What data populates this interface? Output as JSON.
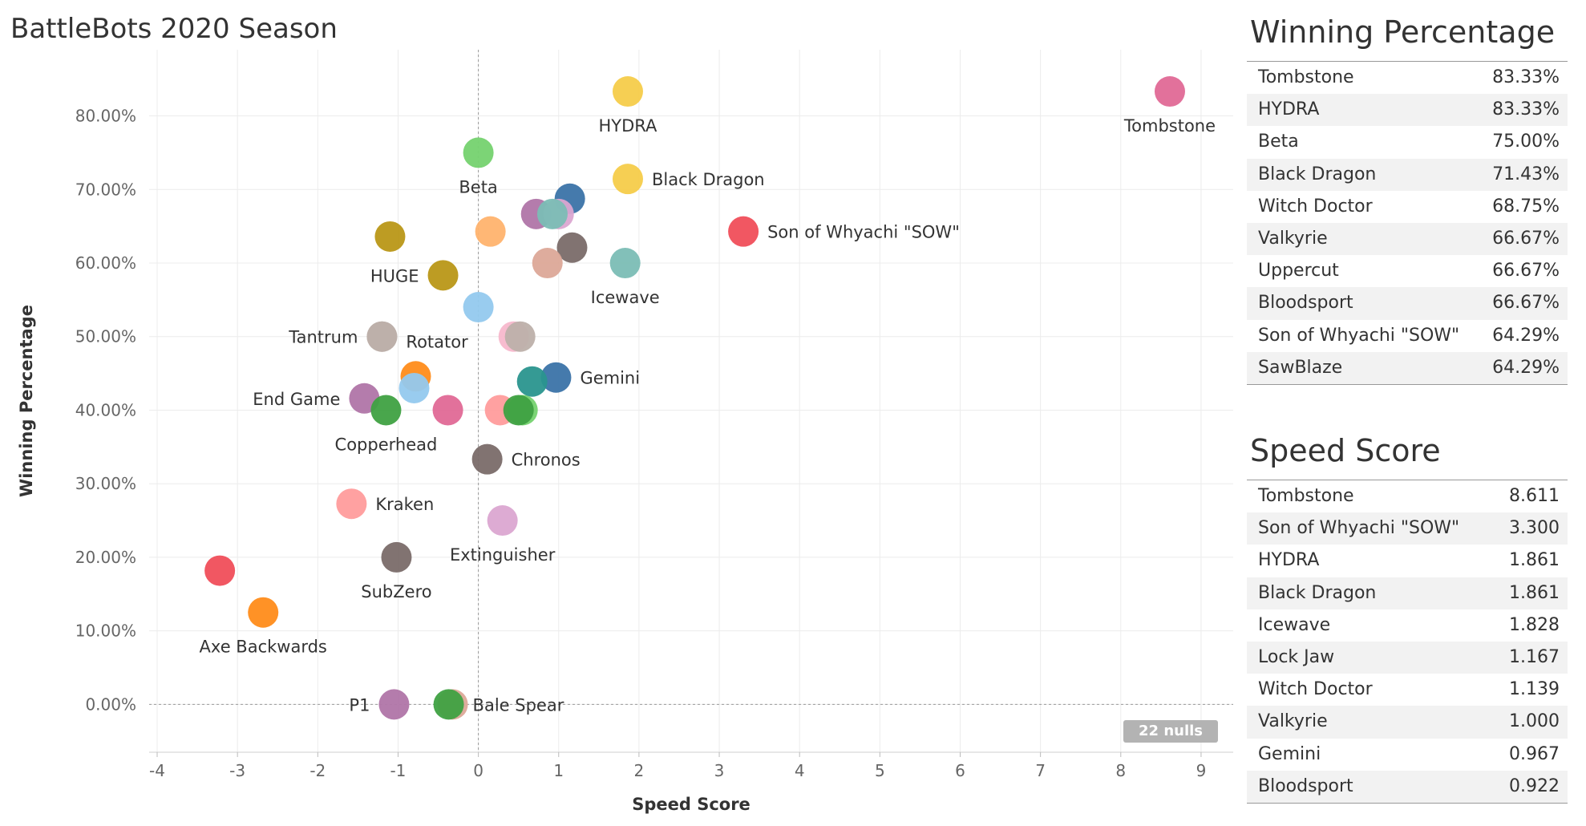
{
  "chart_title": "BattleBots 2020 Season",
  "nulls_badge": "22 nulls",
  "colors": {
    "red": "#f04e5a",
    "orange": "#ff8c1a",
    "yellow": "#f6cc4a",
    "green": "#3fa142",
    "lightgreen": "#75d26f",
    "blue": "#3b73a8",
    "lightblue": "#93c9ee",
    "teal": "#2a958e",
    "lightteal": "#7bbdb5",
    "purple": "#b075a8",
    "pink": "#e06996",
    "lightpink": "#f7b8cc",
    "salmon": "#ff9c9c",
    "peach": "#ffb36e",
    "tan": "#dca898",
    "gold": "#b99717",
    "grey": "#bdb0aa",
    "darkgrey": "#7a6b69",
    "lavender": "#dba6d1"
  },
  "chart_data": {
    "type": "scatter",
    "title": "BattleBots 2020 Season",
    "xlabel": "Speed Score",
    "ylabel": "Winning Percentage",
    "xlim": [
      -4.1,
      9.4
    ],
    "ylim": [
      -6.5,
      89
    ],
    "xticks": [
      -4,
      -3,
      -2,
      -1,
      0,
      1,
      2,
      3,
      4,
      5,
      6,
      7,
      8,
      9
    ],
    "yticks": [
      0,
      10,
      20,
      30,
      40,
      50,
      60,
      70,
      80
    ],
    "ytick_labels": [
      "0.00%",
      "10.00%",
      "20.00%",
      "30.00%",
      "40.00%",
      "50.00%",
      "60.00%",
      "70.00%",
      "80.00%"
    ],
    "grid": true,
    "points": [
      {
        "x": 8.611,
        "y": 83.33,
        "color": "pink",
        "label": "Tombstone",
        "lpos": "below"
      },
      {
        "x": 1.861,
        "y": 83.33,
        "color": "yellow",
        "label": "HYDRA",
        "lpos": "below"
      },
      {
        "x": 0.0,
        "y": 75.0,
        "color": "lightgreen",
        "label": "Beta",
        "lpos": "below"
      },
      {
        "x": 1.861,
        "y": 71.43,
        "color": "yellow",
        "label": "Black Dragon",
        "lpos": "right"
      },
      {
        "x": 1.139,
        "y": 68.75,
        "color": "blue",
        "label": "",
        "lpos": ""
      },
      {
        "x": 0.72,
        "y": 66.67,
        "color": "purple",
        "label": "",
        "lpos": ""
      },
      {
        "x": 1.0,
        "y": 66.67,
        "color": "lavender",
        "label": "",
        "lpos": ""
      },
      {
        "x": 0.922,
        "y": 66.67,
        "color": "lightteal",
        "label": "",
        "lpos": ""
      },
      {
        "x": 3.3,
        "y": 64.29,
        "color": "red",
        "label": "Son of Whyachi \"SOW\"",
        "lpos": "right"
      },
      {
        "x": 0.15,
        "y": 64.29,
        "color": "peach",
        "label": "",
        "lpos": ""
      },
      {
        "x": -1.1,
        "y": 63.6,
        "color": "gold",
        "label": "",
        "lpos": ""
      },
      {
        "x": 1.167,
        "y": 62.1,
        "color": "darkgrey",
        "label": "",
        "lpos": ""
      },
      {
        "x": 0.86,
        "y": 60.0,
        "color": "tan",
        "label": "",
        "lpos": ""
      },
      {
        "x": 1.828,
        "y": 60.0,
        "color": "lightteal",
        "label": "Icewave",
        "lpos": "below"
      },
      {
        "x": -0.44,
        "y": 58.33,
        "color": "gold",
        "label": "HUGE",
        "lpos": "left"
      },
      {
        "x": 0.0,
        "y": 54.0,
        "color": "lightblue",
        "label": "",
        "lpos": ""
      },
      {
        "x": -1.2,
        "y": 50.0,
        "color": "grey",
        "label": "Tantrum",
        "lpos": "left"
      },
      {
        "x": -1.2,
        "y": 50.0,
        "color": "grey",
        "label": "Rotator",
        "lpos": "rotator"
      },
      {
        "x": 0.44,
        "y": 50.0,
        "color": "lightpink",
        "label": "",
        "lpos": ""
      },
      {
        "x": 0.52,
        "y": 50.0,
        "color": "grey",
        "label": "",
        "lpos": ""
      },
      {
        "x": -0.78,
        "y": 44.6,
        "color": "orange",
        "label": "",
        "lpos": ""
      },
      {
        "x": 0.967,
        "y": 44.44,
        "color": "blue",
        "label": "Gemini",
        "lpos": "right"
      },
      {
        "x": 0.67,
        "y": 43.9,
        "color": "teal",
        "label": "",
        "lpos": ""
      },
      {
        "x": -0.8,
        "y": 43.0,
        "color": "lightblue",
        "label": "",
        "lpos": ""
      },
      {
        "x": -1.42,
        "y": 41.6,
        "color": "purple",
        "label": "End Game",
        "lpos": "left"
      },
      {
        "x": -1.15,
        "y": 40.0,
        "color": "green",
        "label": "Copperhead",
        "lpos": "below"
      },
      {
        "x": -0.38,
        "y": 40.0,
        "color": "pink",
        "label": "",
        "lpos": ""
      },
      {
        "x": 0.27,
        "y": 40.0,
        "color": "salmon",
        "label": "",
        "lpos": ""
      },
      {
        "x": 0.55,
        "y": 40.0,
        "color": "lightgreen",
        "label": "",
        "lpos": ""
      },
      {
        "x": 0.5,
        "y": 40.0,
        "color": "green",
        "label": "",
        "lpos": ""
      },
      {
        "x": 0.11,
        "y": 33.33,
        "color": "darkgrey",
        "label": "Chronos",
        "lpos": "right"
      },
      {
        "x": -1.58,
        "y": 27.27,
        "color": "salmon",
        "label": "Kraken",
        "lpos": "right"
      },
      {
        "x": 0.3,
        "y": 25.0,
        "color": "lavender",
        "label": "Extinguisher",
        "lpos": "below"
      },
      {
        "x": -1.02,
        "y": 20.0,
        "color": "darkgrey",
        "label": "SubZero",
        "lpos": "below"
      },
      {
        "x": -3.22,
        "y": 18.18,
        "color": "red",
        "label": "",
        "lpos": ""
      },
      {
        "x": -2.68,
        "y": 12.5,
        "color": "orange",
        "label": "Axe Backwards",
        "lpos": "below"
      },
      {
        "x": -1.05,
        "y": 0.0,
        "color": "purple",
        "label": "P1",
        "lpos": "left"
      },
      {
        "x": -0.32,
        "y": 0.0,
        "color": "tan",
        "label": "",
        "lpos": ""
      },
      {
        "x": -0.37,
        "y": 0.0,
        "color": "green",
        "label": "Bale Spear",
        "lpos": "right"
      }
    ]
  },
  "win_pct": {
    "title": "Winning Percentage",
    "rows": [
      {
        "name": "Tombstone",
        "value": "83.33%"
      },
      {
        "name": "HYDRA",
        "value": "83.33%"
      },
      {
        "name": "Beta",
        "value": "75.00%"
      },
      {
        "name": "Black Dragon",
        "value": "71.43%"
      },
      {
        "name": "Witch Doctor",
        "value": "68.75%"
      },
      {
        "name": "Valkyrie",
        "value": "66.67%"
      },
      {
        "name": "Uppercut",
        "value": "66.67%"
      },
      {
        "name": "Bloodsport",
        "value": "66.67%"
      },
      {
        "name": "Son of Whyachi \"SOW\"",
        "value": "64.29%"
      },
      {
        "name": "SawBlaze",
        "value": "64.29%"
      }
    ]
  },
  "speed_score": {
    "title": "Speed Score",
    "rows": [
      {
        "name": "Tombstone",
        "value": "8.611"
      },
      {
        "name": "Son of Whyachi \"SOW\"",
        "value": "3.300"
      },
      {
        "name": "HYDRA",
        "value": "1.861"
      },
      {
        "name": "Black Dragon",
        "value": "1.861"
      },
      {
        "name": "Icewave",
        "value": "1.828"
      },
      {
        "name": "Lock Jaw",
        "value": "1.167"
      },
      {
        "name": "Witch Doctor",
        "value": "1.139"
      },
      {
        "name": "Valkyrie",
        "value": "1.000"
      },
      {
        "name": "Gemini",
        "value": "0.967"
      },
      {
        "name": "Bloodsport",
        "value": "0.922"
      }
    ]
  }
}
